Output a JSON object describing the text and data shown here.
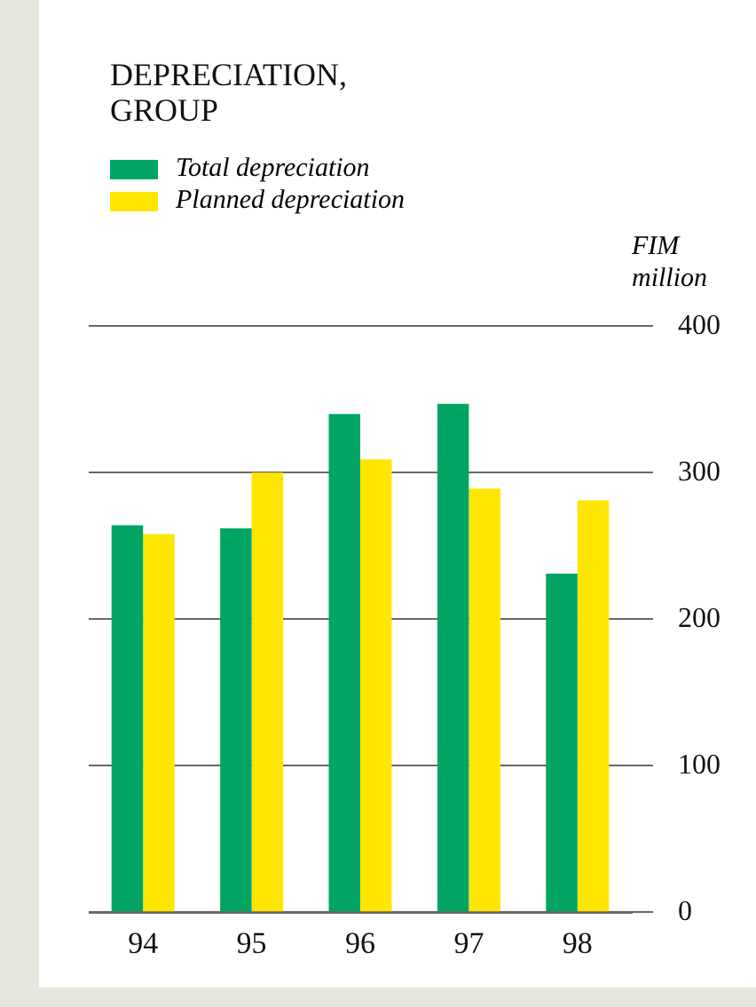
{
  "chart_data": {
    "type": "bar",
    "title": "DEPRECIATION, GROUP",
    "ylabel": "FIM million",
    "categories": [
      "94",
      "95",
      "96",
      "97",
      "98"
    ],
    "series": [
      {
        "name": "Total depreciation",
        "color": "#00a564",
        "values": [
          264,
          262,
          340,
          347,
          231
        ]
      },
      {
        "name": "Planned depreciation",
        "color": "#ffe600",
        "values": [
          258,
          300,
          309,
          289,
          281
        ]
      }
    ],
    "ylim": [
      0,
      400
    ],
    "yticks": [
      0,
      100,
      200,
      300,
      400
    ],
    "grid": "y",
    "legend": "top left"
  }
}
